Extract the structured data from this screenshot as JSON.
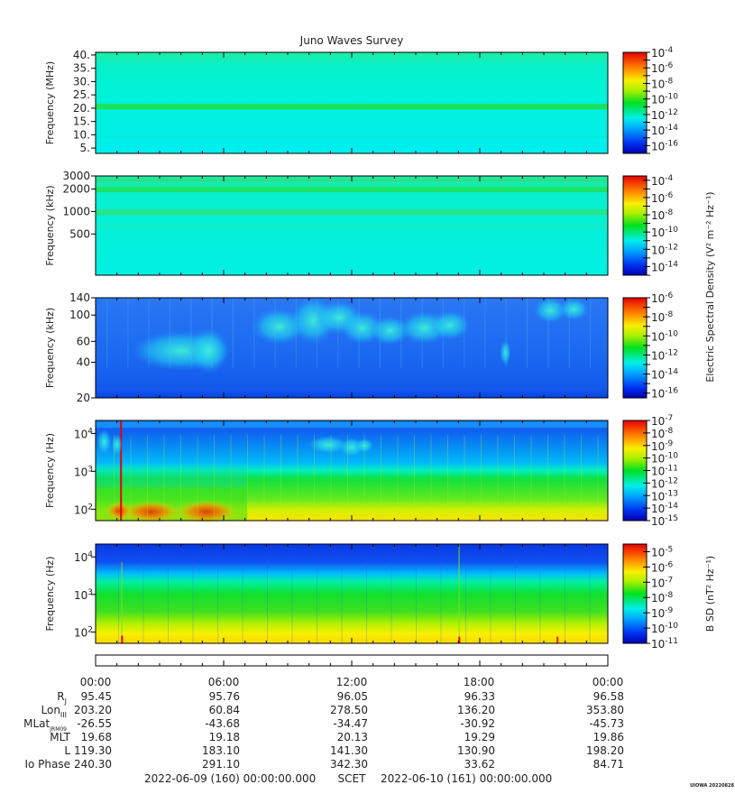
{
  "title": "Juno Waves Survey",
  "footer": {
    "start": "2022-06-09 (160) 00:00:00.000",
    "scet": "SCET",
    "end": "2022-06-10 (161) 00:00:00.000",
    "stamp": "UIOWA 20220828"
  },
  "colorbar_labels": {
    "e": "Electric Spectral Density (V² m⁻² Hz⁻¹)",
    "b": "B SD (nT² Hz⁻¹)"
  },
  "colors": {
    "background_cyan": "#00f0e8",
    "background_blue": "#1e6ef5",
    "deep_blue": "#0020e0",
    "green": "#00e020",
    "yellow": "#f0e000",
    "red": "#e00000"
  },
  "chart_data": [
    {
      "type": "heatmap",
      "panel": 1,
      "ylabel": "Frequency (MHz)",
      "yscale": "linear",
      "ylim": [
        3,
        41
      ],
      "y_ticks": [
        {
          "v": 40,
          "label": "40."
        },
        {
          "v": 35,
          "label": "35."
        },
        {
          "v": 30,
          "label": "30."
        },
        {
          "v": 25,
          "label": "25."
        },
        {
          "v": 20,
          "label": "20."
        },
        {
          "v": 15,
          "label": "15."
        },
        {
          "v": 10,
          "label": "10."
        },
        {
          "v": 5,
          "label": "5."
        }
      ],
      "colorbar": {
        "scale": "log",
        "range_exp": [
          -17,
          -4
        ],
        "ticks": [
          {
            "base": "10",
            "exp": "-4"
          },
          {
            "base": "10",
            "exp": "-6"
          },
          {
            "base": "10",
            "exp": "-8"
          },
          {
            "base": "10",
            "exp": "-10"
          },
          {
            "base": "10",
            "exp": "-12"
          },
          {
            "base": "10",
            "exp": "-14"
          },
          {
            "base": "10",
            "exp": "-16"
          }
        ]
      }
    },
    {
      "type": "heatmap",
      "panel": 2,
      "ylabel": "Frequency (kHz)",
      "yscale": "log",
      "ylim": [
        140,
        3000
      ],
      "y_ticks": [
        {
          "v": 3000,
          "label": "3000"
        },
        {
          "v": 2000,
          "label": "2000"
        },
        {
          "v": 1000,
          "label": "1000"
        },
        {
          "v": 500,
          "label": "500"
        }
      ],
      "colorbar": {
        "scale": "log",
        "range_exp": [
          -15,
          -3.5
        ],
        "ticks": [
          {
            "base": "10",
            "exp": "-4"
          },
          {
            "base": "10",
            "exp": "-6"
          },
          {
            "base": "10",
            "exp": "-8"
          },
          {
            "base": "10",
            "exp": "-10"
          },
          {
            "base": "10",
            "exp": "-12"
          },
          {
            "base": "10",
            "exp": "-14"
          }
        ]
      }
    },
    {
      "type": "heatmap",
      "panel": 3,
      "ylabel": "Frequency (kHz)",
      "yscale": "log",
      "ylim": [
        20,
        140
      ],
      "y_ticks": [
        {
          "v": 140,
          "label": "140"
        },
        {
          "v": 100,
          "label": "100"
        },
        {
          "v": 60,
          "label": "60"
        },
        {
          "v": 40,
          "label": "40"
        },
        {
          "v": 20,
          "label": "20"
        }
      ],
      "colorbar": {
        "scale": "log",
        "range_exp": [
          -16.5,
          -6
        ],
        "ticks": [
          {
            "base": "10",
            "exp": "-6"
          },
          {
            "base": "10",
            "exp": "-8"
          },
          {
            "base": "10",
            "exp": "-10"
          },
          {
            "base": "10",
            "exp": "-12"
          },
          {
            "base": "10",
            "exp": "-14"
          },
          {
            "base": "10",
            "exp": "-16"
          }
        ]
      }
    },
    {
      "type": "heatmap",
      "panel": 4,
      "ylabel": "Frequency (Hz)",
      "yscale": "log",
      "ylim": [
        50,
        22000
      ],
      "y_ticks": [
        {
          "v": 10000,
          "base": "10",
          "exp": "4"
        },
        {
          "v": 1000,
          "base": "10",
          "exp": "3"
        },
        {
          "v": 100,
          "base": "10",
          "exp": "2"
        }
      ],
      "colorbar": {
        "scale": "log",
        "range_exp": [
          -15,
          -7
        ],
        "ticks": [
          {
            "base": "10",
            "exp": "-7"
          },
          {
            "base": "10",
            "exp": "-8"
          },
          {
            "base": "10",
            "exp": "-9"
          },
          {
            "base": "10",
            "exp": "-10"
          },
          {
            "base": "10",
            "exp": "-11"
          },
          {
            "base": "10",
            "exp": "-12"
          },
          {
            "base": "10",
            "exp": "-13"
          },
          {
            "base": "10",
            "exp": "-14"
          },
          {
            "base": "10",
            "exp": "-15"
          }
        ]
      }
    },
    {
      "type": "heatmap",
      "panel": 5,
      "ylabel": "Frequency (Hz)",
      "yscale": "log",
      "ylim": [
        50,
        22000
      ],
      "y_ticks": [
        {
          "v": 10000,
          "base": "10",
          "exp": "4"
        },
        {
          "v": 1000,
          "base": "10",
          "exp": "3"
        },
        {
          "v": 100,
          "base": "10",
          "exp": "2"
        }
      ],
      "colorbar": {
        "scale": "log",
        "range_exp": [
          -11,
          -4.5
        ],
        "ticks": [
          {
            "base": "10",
            "exp": "-5"
          },
          {
            "base": "10",
            "exp": "-6"
          },
          {
            "base": "10",
            "exp": "-7"
          },
          {
            "base": "10",
            "exp": "-8"
          },
          {
            "base": "10",
            "exp": "-9"
          },
          {
            "base": "10",
            "exp": "-10"
          },
          {
            "base": "10",
            "exp": "-11"
          }
        ]
      }
    }
  ],
  "time_axis": {
    "range_hours": [
      0,
      24
    ],
    "labels": [
      "00:00",
      "06:00",
      "12:00",
      "18:00",
      "00:00"
    ]
  },
  "ephemeris": [
    {
      "name": "R",
      "sub": "J",
      "values": [
        "95.45",
        "95.76",
        "96.05",
        "96.33",
        "96.58"
      ]
    },
    {
      "name": "Lon",
      "sub": "III",
      "values": [
        "203.20",
        "60.84",
        "278.50",
        "136.20",
        "353.80"
      ]
    },
    {
      "name": "MLat",
      "sub": "JRM09",
      "values": [
        "-26.55",
        "-43.68",
        "-34.47",
        "-30.92",
        "-45.73"
      ]
    },
    {
      "name": "MLT",
      "sub": "",
      "values": [
        "19.68",
        "19.18",
        "20.13",
        "19.29",
        "19.86"
      ]
    },
    {
      "name": "L",
      "sub": "",
      "values": [
        "119.30",
        "183.10",
        "141.30",
        "130.90",
        "198.20"
      ]
    },
    {
      "name": "Io Phase",
      "sub": "",
      "values": [
        "240.30",
        "291.10",
        "342.30",
        "33.62",
        "84.71"
      ]
    }
  ]
}
